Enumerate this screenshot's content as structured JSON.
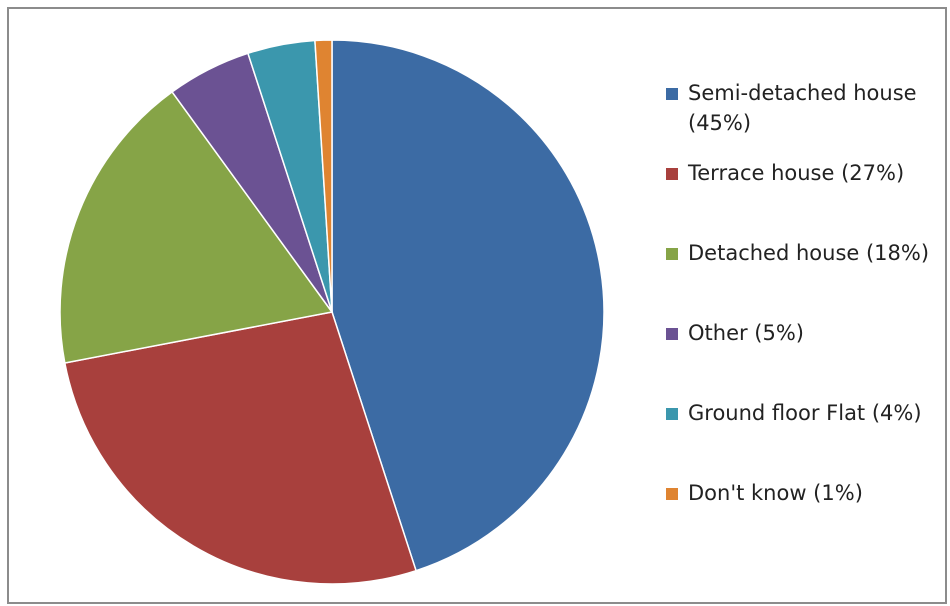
{
  "chart_data": {
    "type": "pie",
    "title": "",
    "categories": [
      "Semi-detached house",
      "Terrace house",
      "Detached house",
      "Other",
      "Ground floor Flat",
      "Don't know"
    ],
    "values": [
      45,
      27,
      18,
      5,
      4,
      1
    ],
    "unit": "%",
    "colors": [
      "#3c6ba4",
      "#a8403d",
      "#86a447",
      "#6b5293",
      "#3b97ad",
      "#df8431"
    ],
    "legend": {
      "position": "right",
      "labels": [
        "Semi-detached house (45%)",
        "Terrace house (27%)",
        "Detached house (18%)",
        "Other (5%)",
        "Ground floor Flat (4%)",
        "Don't know (1%)"
      ]
    }
  }
}
